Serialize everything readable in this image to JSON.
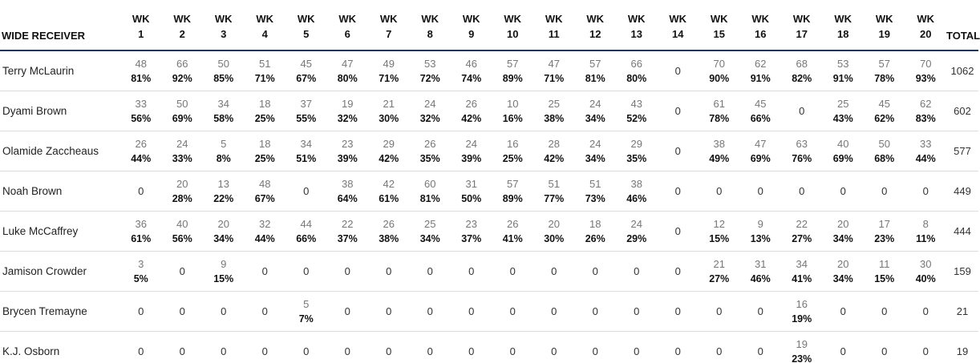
{
  "table": {
    "name_header": "WIDE RECEIVER",
    "week_word": "WK",
    "weeks": [
      "1",
      "2",
      "3",
      "4",
      "5",
      "6",
      "7",
      "8",
      "9",
      "10",
      "11",
      "12",
      "13",
      "14",
      "15",
      "16",
      "17",
      "18",
      "19",
      "20"
    ],
    "total_header": "TOTAL",
    "rows": [
      {
        "name": "Terry McLaurin",
        "cells": [
          {
            "snaps": "48",
            "pct": "81%"
          },
          {
            "snaps": "66",
            "pct": "92%"
          },
          {
            "snaps": "50",
            "pct": "85%"
          },
          {
            "snaps": "51",
            "pct": "71%"
          },
          {
            "snaps": "45",
            "pct": "67%"
          },
          {
            "snaps": "47",
            "pct": "80%"
          },
          {
            "snaps": "49",
            "pct": "71%"
          },
          {
            "snaps": "53",
            "pct": "72%"
          },
          {
            "snaps": "46",
            "pct": "74%"
          },
          {
            "snaps": "57",
            "pct": "89%"
          },
          {
            "snaps": "47",
            "pct": "71%"
          },
          {
            "snaps": "57",
            "pct": "81%"
          },
          {
            "snaps": "66",
            "pct": "80%"
          },
          {
            "snaps": "0"
          },
          {
            "snaps": "70",
            "pct": "90%"
          },
          {
            "snaps": "62",
            "pct": "91%"
          },
          {
            "snaps": "68",
            "pct": "82%"
          },
          {
            "snaps": "53",
            "pct": "91%"
          },
          {
            "snaps": "57",
            "pct": "78%"
          },
          {
            "snaps": "70",
            "pct": "93%"
          }
        ],
        "total": "1062"
      },
      {
        "name": "Dyami Brown",
        "cells": [
          {
            "snaps": "33",
            "pct": "56%"
          },
          {
            "snaps": "50",
            "pct": "69%"
          },
          {
            "snaps": "34",
            "pct": "58%"
          },
          {
            "snaps": "18",
            "pct": "25%"
          },
          {
            "snaps": "37",
            "pct": "55%"
          },
          {
            "snaps": "19",
            "pct": "32%"
          },
          {
            "snaps": "21",
            "pct": "30%"
          },
          {
            "snaps": "24",
            "pct": "32%"
          },
          {
            "snaps": "26",
            "pct": "42%"
          },
          {
            "snaps": "10",
            "pct": "16%"
          },
          {
            "snaps": "25",
            "pct": "38%"
          },
          {
            "snaps": "24",
            "pct": "34%"
          },
          {
            "snaps": "43",
            "pct": "52%"
          },
          {
            "snaps": "0"
          },
          {
            "snaps": "61",
            "pct": "78%"
          },
          {
            "snaps": "45",
            "pct": "66%"
          },
          {
            "snaps": "0"
          },
          {
            "snaps": "25",
            "pct": "43%"
          },
          {
            "snaps": "45",
            "pct": "62%"
          },
          {
            "snaps": "62",
            "pct": "83%"
          }
        ],
        "total": "602"
      },
      {
        "name": "Olamide Zaccheaus",
        "cells": [
          {
            "snaps": "26",
            "pct": "44%"
          },
          {
            "snaps": "24",
            "pct": "33%"
          },
          {
            "snaps": "5",
            "pct": "8%"
          },
          {
            "snaps": "18",
            "pct": "25%"
          },
          {
            "snaps": "34",
            "pct": "51%"
          },
          {
            "snaps": "23",
            "pct": "39%"
          },
          {
            "snaps": "29",
            "pct": "42%"
          },
          {
            "snaps": "26",
            "pct": "35%"
          },
          {
            "snaps": "24",
            "pct": "39%"
          },
          {
            "snaps": "16",
            "pct": "25%"
          },
          {
            "snaps": "28",
            "pct": "42%"
          },
          {
            "snaps": "24",
            "pct": "34%"
          },
          {
            "snaps": "29",
            "pct": "35%"
          },
          {
            "snaps": "0"
          },
          {
            "snaps": "38",
            "pct": "49%"
          },
          {
            "snaps": "47",
            "pct": "69%"
          },
          {
            "snaps": "63",
            "pct": "76%"
          },
          {
            "snaps": "40",
            "pct": "69%"
          },
          {
            "snaps": "50",
            "pct": "68%"
          },
          {
            "snaps": "33",
            "pct": "44%"
          }
        ],
        "total": "577"
      },
      {
        "name": "Noah Brown",
        "cells": [
          {
            "snaps": "0"
          },
          {
            "snaps": "20",
            "pct": "28%"
          },
          {
            "snaps": "13",
            "pct": "22%"
          },
          {
            "snaps": "48",
            "pct": "67%"
          },
          {
            "snaps": "0"
          },
          {
            "snaps": "38",
            "pct": "64%"
          },
          {
            "snaps": "42",
            "pct": "61%"
          },
          {
            "snaps": "60",
            "pct": "81%"
          },
          {
            "snaps": "31",
            "pct": "50%"
          },
          {
            "snaps": "57",
            "pct": "89%"
          },
          {
            "snaps": "51",
            "pct": "77%"
          },
          {
            "snaps": "51",
            "pct": "73%"
          },
          {
            "snaps": "38",
            "pct": "46%"
          },
          {
            "snaps": "0"
          },
          {
            "snaps": "0"
          },
          {
            "snaps": "0"
          },
          {
            "snaps": "0"
          },
          {
            "snaps": "0"
          },
          {
            "snaps": "0"
          },
          {
            "snaps": "0"
          }
        ],
        "total": "449"
      },
      {
        "name": "Luke McCaffrey",
        "cells": [
          {
            "snaps": "36",
            "pct": "61%"
          },
          {
            "snaps": "40",
            "pct": "56%"
          },
          {
            "snaps": "20",
            "pct": "34%"
          },
          {
            "snaps": "32",
            "pct": "44%"
          },
          {
            "snaps": "44",
            "pct": "66%"
          },
          {
            "snaps": "22",
            "pct": "37%"
          },
          {
            "snaps": "26",
            "pct": "38%"
          },
          {
            "snaps": "25",
            "pct": "34%"
          },
          {
            "snaps": "23",
            "pct": "37%"
          },
          {
            "snaps": "26",
            "pct": "41%"
          },
          {
            "snaps": "20",
            "pct": "30%"
          },
          {
            "snaps": "18",
            "pct": "26%"
          },
          {
            "snaps": "24",
            "pct": "29%"
          },
          {
            "snaps": "0"
          },
          {
            "snaps": "12",
            "pct": "15%"
          },
          {
            "snaps": "9",
            "pct": "13%"
          },
          {
            "snaps": "22",
            "pct": "27%"
          },
          {
            "snaps": "20",
            "pct": "34%"
          },
          {
            "snaps": "17",
            "pct": "23%"
          },
          {
            "snaps": "8",
            "pct": "11%"
          }
        ],
        "total": "444"
      },
      {
        "name": "Jamison Crowder",
        "cells": [
          {
            "snaps": "3",
            "pct": "5%"
          },
          {
            "snaps": "0"
          },
          {
            "snaps": "9",
            "pct": "15%"
          },
          {
            "snaps": "0"
          },
          {
            "snaps": "0"
          },
          {
            "snaps": "0"
          },
          {
            "snaps": "0"
          },
          {
            "snaps": "0"
          },
          {
            "snaps": "0"
          },
          {
            "snaps": "0"
          },
          {
            "snaps": "0"
          },
          {
            "snaps": "0"
          },
          {
            "snaps": "0"
          },
          {
            "snaps": "0"
          },
          {
            "snaps": "21",
            "pct": "27%"
          },
          {
            "snaps": "31",
            "pct": "46%"
          },
          {
            "snaps": "34",
            "pct": "41%"
          },
          {
            "snaps": "20",
            "pct": "34%"
          },
          {
            "snaps": "11",
            "pct": "15%"
          },
          {
            "snaps": "30",
            "pct": "40%"
          }
        ],
        "total": "159"
      },
      {
        "name": "Brycen Tremayne",
        "cells": [
          {
            "snaps": "0"
          },
          {
            "snaps": "0"
          },
          {
            "snaps": "0"
          },
          {
            "snaps": "0"
          },
          {
            "snaps": "5",
            "pct": "7%"
          },
          {
            "snaps": "0"
          },
          {
            "snaps": "0"
          },
          {
            "snaps": "0"
          },
          {
            "snaps": "0"
          },
          {
            "snaps": "0"
          },
          {
            "snaps": "0"
          },
          {
            "snaps": "0"
          },
          {
            "snaps": "0"
          },
          {
            "snaps": "0"
          },
          {
            "snaps": "0"
          },
          {
            "snaps": "0"
          },
          {
            "snaps": "16",
            "pct": "19%"
          },
          {
            "snaps": "0"
          },
          {
            "snaps": "0"
          },
          {
            "snaps": "0"
          }
        ],
        "total": "21"
      },
      {
        "name": "K.J. Osborn",
        "cells": [
          {
            "snaps": "0"
          },
          {
            "snaps": "0"
          },
          {
            "snaps": "0"
          },
          {
            "snaps": "0"
          },
          {
            "snaps": "0"
          },
          {
            "snaps": "0"
          },
          {
            "snaps": "0"
          },
          {
            "snaps": "0"
          },
          {
            "snaps": "0"
          },
          {
            "snaps": "0"
          },
          {
            "snaps": "0"
          },
          {
            "snaps": "0"
          },
          {
            "snaps": "0"
          },
          {
            "snaps": "0"
          },
          {
            "snaps": "0"
          },
          {
            "snaps": "0"
          },
          {
            "snaps": "19",
            "pct": "23%"
          },
          {
            "snaps": "0"
          },
          {
            "snaps": "0"
          },
          {
            "snaps": "0"
          }
        ],
        "total": "19"
      }
    ]
  }
}
